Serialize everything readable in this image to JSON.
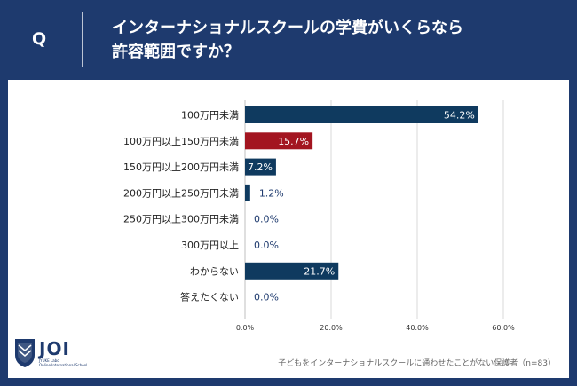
{
  "header": {
    "q_mark": "Q",
    "question_line1": "インターナショナルスクールの学費がいくらなら",
    "question_line2": "許容範囲ですか？"
  },
  "logo": {
    "name": "JOI",
    "sub_line1": "JYUKE Labo",
    "sub_line2": "Online International School"
  },
  "footnote": "子どもをインターナショナルスクールに通わせたことがない保護者（n=83）",
  "colors": {
    "navy": "#1e3a6e",
    "highlight": "#a31520",
    "bar": "#0f3a5f",
    "grid": "#d9d9d9"
  },
  "chart_data": {
    "type": "bar",
    "orientation": "horizontal",
    "categories": [
      "100万円未満",
      "100万円以上150万円未満",
      "150万円以上200万円未満",
      "200万円以上250万円未満",
      "250万円以上300万円未満",
      "300万円以上",
      "わからない",
      "答えたくない"
    ],
    "values": [
      54.2,
      15.7,
      7.2,
      1.2,
      0.0,
      0.0,
      21.7,
      0.0
    ],
    "value_labels": [
      "54.2%",
      "15.7%",
      "7.2%",
      "1.2%",
      "0.0%",
      "0.0%",
      "21.7%",
      "0.0%"
    ],
    "highlight_index": 1,
    "xlim": [
      0,
      60
    ],
    "x_ticks": [
      "0.0%",
      "20.0%",
      "40.0%",
      "60.0%"
    ],
    "grid": true
  }
}
